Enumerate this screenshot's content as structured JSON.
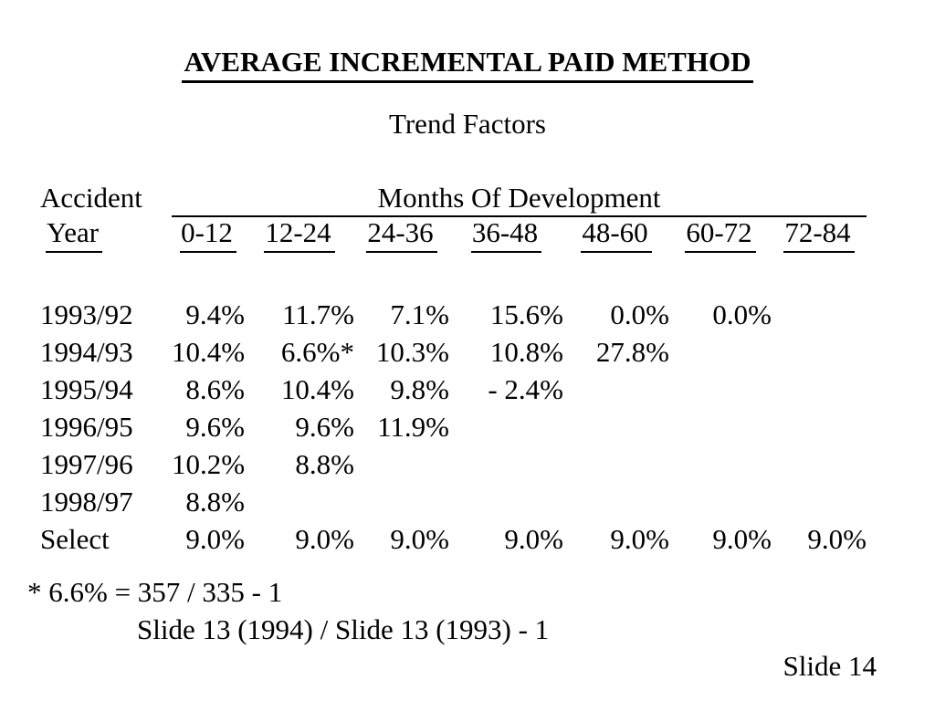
{
  "slide": {
    "title": "AVERAGE INCREMENTAL PAID METHOD",
    "subtitle": "Trend Factors",
    "table": {
      "corner_header": "Accident",
      "row_header": "Year",
      "group_header": "Months Of  Development",
      "columns": [
        "0-12",
        "12-24",
        "24-36",
        "36-48",
        "48-60",
        "60-72",
        "72-84"
      ],
      "rows": [
        {
          "label": "1993/92",
          "values": [
            "9.4%",
            "11.7%",
            "7.1%",
            "15.6%",
            "0.0%",
            "0.0%",
            ""
          ]
        },
        {
          "label": "1994/93",
          "values": [
            "10.4%",
            "6.6%*",
            "10.3%",
            "10.8%",
            "27.8%",
            "",
            ""
          ]
        },
        {
          "label": "1995/94",
          "values": [
            "8.6%",
            "10.4%",
            "9.8%",
            "- 2.4%",
            "",
            "",
            ""
          ]
        },
        {
          "label": "1996/95",
          "values": [
            "9.6%",
            "9.6%",
            "11.9%",
            "",
            "",
            "",
            ""
          ]
        },
        {
          "label": "1997/96",
          "values": [
            "10.2%",
            "8.8%",
            "",
            "",
            "",
            "",
            ""
          ]
        },
        {
          "label": "1998/97",
          "values": [
            "8.8%",
            "",
            "",
            "",
            "",
            "",
            ""
          ]
        },
        {
          "label": "Select",
          "values": [
            "9.0%",
            "9.0%",
            "9.0%",
            "9.0%",
            "9.0%",
            "9.0%",
            "9.0%"
          ]
        }
      ]
    },
    "footnotes": {
      "line1": "* 6.6% = 357 / 335 - 1",
      "line2": "Slide 13 (1994) / Slide 13 (1993) - 1"
    },
    "slide_number": "Slide 14",
    "colors": {
      "background": "#ffffff",
      "text": "#000000"
    }
  }
}
